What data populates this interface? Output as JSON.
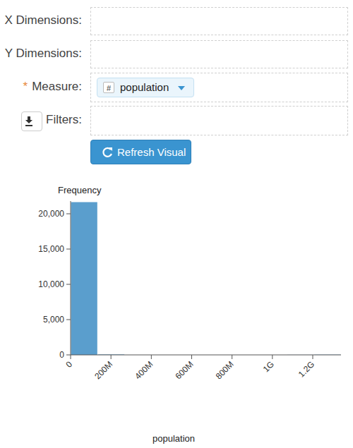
{
  "form": {
    "rows": [
      {
        "label": "X Dimensions:"
      },
      {
        "label": "Y Dimensions:"
      },
      {
        "label": "Measure:",
        "required": "*",
        "value_type": "#",
        "value": "population"
      },
      {
        "label": "Filters:"
      }
    ],
    "button": "Refresh Visual"
  },
  "chart_data": {
    "type": "histogram",
    "y_label": "Frequency",
    "x_label": "population",
    "color": "#5a9ecd",
    "bins": [
      0,
      134000000,
      268000000,
      402000000,
      536000000,
      670000000,
      804000000,
      938000000,
      1072000000,
      1206000000,
      1340000000
    ],
    "values": [
      21650,
      60,
      0,
      0,
      0,
      0,
      0,
      0,
      10,
      30
    ],
    "xlim": [
      0,
      1340000000
    ],
    "xticks": [
      0,
      {
        "value": 200000000,
        "label": "200M"
      },
      {
        "value": 400000000,
        "label": "400M"
      },
      {
        "value": 600000000,
        "label": "600M"
      },
      {
        "value": 800000000,
        "label": "800M"
      },
      {
        "value": 1000000000,
        "label": "1G"
      },
      {
        "value": 1200000000,
        "label": "1.2G"
      }
    ],
    "ylim": [
      0,
      21800
    ],
    "yticks": [
      0,
      {
        "value": 5000,
        "label": "5,000"
      },
      {
        "value": 10000,
        "label": "10,000"
      },
      {
        "value": 15000,
        "label": "15,000"
      },
      {
        "value": 20000,
        "label": "20,000"
      }
    ],
    "grid": false
  }
}
